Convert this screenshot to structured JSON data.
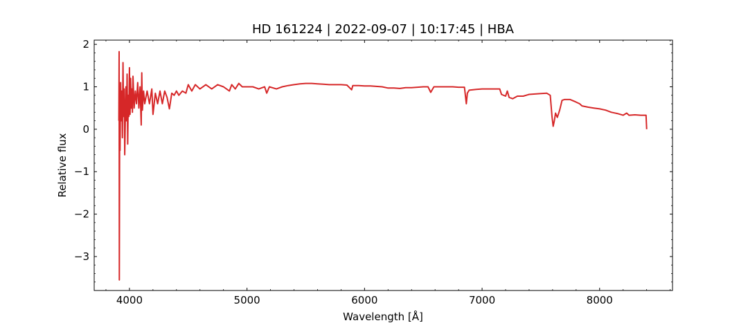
{
  "chart_data": {
    "type": "line",
    "title": "HD 161224 | 2022-09-07 | 10:17:45 | HBA",
    "xlabel": "Wavelength [Å]",
    "ylabel": "Relative flux",
    "xlim": [
      3700,
      8620
    ],
    "ylim": [
      -3.8,
      2.1
    ],
    "xticks": [
      4000,
      5000,
      6000,
      7000,
      8000
    ],
    "xtick_labels": [
      "4000",
      "5000",
      "6000",
      "7000",
      "8000"
    ],
    "yticks": [
      -3,
      -2,
      -1,
      0,
      1,
      2
    ],
    "ytick_labels": [
      "−3",
      "−2",
      "−1",
      "0",
      "1",
      "2"
    ],
    "grid": false,
    "series": [
      {
        "color": "#d62728",
        "points": [
          [
            3910,
            0.2
          ],
          [
            3912,
            1.83
          ],
          [
            3914,
            -3.55
          ],
          [
            3916,
            -0.4
          ],
          [
            3918,
            0.9
          ],
          [
            3920,
            -0.5
          ],
          [
            3925,
            1.1
          ],
          [
            3930,
            0.2
          ],
          [
            3935,
            0.9
          ],
          [
            3940,
            -0.2
          ],
          [
            3945,
            1.57
          ],
          [
            3950,
            0.3
          ],
          [
            3955,
            0.95
          ],
          [
            3960,
            -0.6
          ],
          [
            3965,
            0.3
          ],
          [
            3970,
            1.0
          ],
          [
            3975,
            0.2
          ],
          [
            3980,
            1.3
          ],
          [
            3985,
            -0.35
          ],
          [
            3990,
            0.8
          ],
          [
            3995,
            0.3
          ],
          [
            4000,
            1.45
          ],
          [
            4005,
            0.35
          ],
          [
            4010,
            1.2
          ],
          [
            4015,
            0.5
          ],
          [
            4020,
            0.95
          ],
          [
            4025,
            0.4
          ],
          [
            4030,
            1.25
          ],
          [
            4040,
            0.5
          ],
          [
            4050,
            0.9
          ],
          [
            4060,
            0.6
          ],
          [
            4070,
            1.1
          ],
          [
            4080,
            0.5
          ],
          [
            4090,
            1.0
          ],
          [
            4100,
            0.1
          ],
          [
            4105,
            1.33
          ],
          [
            4110,
            0.45
          ],
          [
            4120,
            0.9
          ],
          [
            4130,
            0.6
          ],
          [
            4150,
            0.9
          ],
          [
            4170,
            0.6
          ],
          [
            4190,
            0.95
          ],
          [
            4200,
            0.35
          ],
          [
            4220,
            0.85
          ],
          [
            4240,
            0.6
          ],
          [
            4260,
            0.9
          ],
          [
            4280,
            0.6
          ],
          [
            4300,
            0.9
          ],
          [
            4320,
            0.75
          ],
          [
            4340,
            0.48
          ],
          [
            4360,
            0.85
          ],
          [
            4380,
            0.8
          ],
          [
            4400,
            0.9
          ],
          [
            4420,
            0.8
          ],
          [
            4450,
            0.9
          ],
          [
            4480,
            0.85
          ],
          [
            4500,
            1.05
          ],
          [
            4530,
            0.9
          ],
          [
            4560,
            1.05
          ],
          [
            4600,
            0.95
          ],
          [
            4650,
            1.05
          ],
          [
            4700,
            0.95
          ],
          [
            4750,
            1.05
          ],
          [
            4800,
            1.0
          ],
          [
            4850,
            0.9
          ],
          [
            4870,
            1.05
          ],
          [
            4900,
            0.95
          ],
          [
            4930,
            1.08
          ],
          [
            4960,
            1.0
          ],
          [
            5000,
            1.0
          ],
          [
            5050,
            1.0
          ],
          [
            5100,
            0.95
          ],
          [
            5150,
            1.0
          ],
          [
            5168,
            0.85
          ],
          [
            5190,
            1.0
          ],
          [
            5250,
            0.95
          ],
          [
            5300,
            1.0
          ],
          [
            5350,
            1.03
          ],
          [
            5400,
            1.05
          ],
          [
            5450,
            1.07
          ],
          [
            5500,
            1.08
          ],
          [
            5550,
            1.08
          ],
          [
            5600,
            1.07
          ],
          [
            5650,
            1.06
          ],
          [
            5700,
            1.05
          ],
          [
            5750,
            1.05
          ],
          [
            5800,
            1.05
          ],
          [
            5850,
            1.04
          ],
          [
            5890,
            0.93
          ],
          [
            5900,
            1.03
          ],
          [
            5950,
            1.03
          ],
          [
            6000,
            1.02
          ],
          [
            6050,
            1.02
          ],
          [
            6100,
            1.01
          ],
          [
            6150,
            1.0
          ],
          [
            6200,
            0.97
          ],
          [
            6250,
            0.97
          ],
          [
            6300,
            0.96
          ],
          [
            6350,
            0.98
          ],
          [
            6400,
            0.98
          ],
          [
            6450,
            0.99
          ],
          [
            6500,
            1.0
          ],
          [
            6540,
            1.0
          ],
          [
            6563,
            0.87
          ],
          [
            6590,
            1.0
          ],
          [
            6650,
            1.0
          ],
          [
            6700,
            1.0
          ],
          [
            6750,
            1.0
          ],
          [
            6800,
            0.99
          ],
          [
            6850,
            0.99
          ],
          [
            6866,
            0.6
          ],
          [
            6875,
            0.85
          ],
          [
            6890,
            0.92
          ],
          [
            6950,
            0.94
          ],
          [
            7000,
            0.95
          ],
          [
            7050,
            0.95
          ],
          [
            7100,
            0.95
          ],
          [
            7150,
            0.95
          ],
          [
            7165,
            0.82
          ],
          [
            7200,
            0.78
          ],
          [
            7215,
            0.9
          ],
          [
            7230,
            0.75
          ],
          [
            7260,
            0.72
          ],
          [
            7300,
            0.78
          ],
          [
            7350,
            0.78
          ],
          [
            7400,
            0.82
          ],
          [
            7450,
            0.83
          ],
          [
            7500,
            0.84
          ],
          [
            7550,
            0.85
          ],
          [
            7580,
            0.8
          ],
          [
            7595,
            0.3
          ],
          [
            7605,
            0.07
          ],
          [
            7615,
            0.2
          ],
          [
            7625,
            0.38
          ],
          [
            7640,
            0.28
          ],
          [
            7660,
            0.45
          ],
          [
            7680,
            0.68
          ],
          [
            7700,
            0.7
          ],
          [
            7750,
            0.7
          ],
          [
            7800,
            0.64
          ],
          [
            7830,
            0.6
          ],
          [
            7850,
            0.55
          ],
          [
            7900,
            0.52
          ],
          [
            7950,
            0.5
          ],
          [
            8000,
            0.48
          ],
          [
            8050,
            0.45
          ],
          [
            8100,
            0.4
          ],
          [
            8150,
            0.37
          ],
          [
            8200,
            0.33
          ],
          [
            8230,
            0.38
          ],
          [
            8250,
            0.33
          ],
          [
            8300,
            0.34
          ],
          [
            8350,
            0.33
          ],
          [
            8395,
            0.33
          ],
          [
            8400,
            0.0
          ]
        ]
      }
    ]
  }
}
